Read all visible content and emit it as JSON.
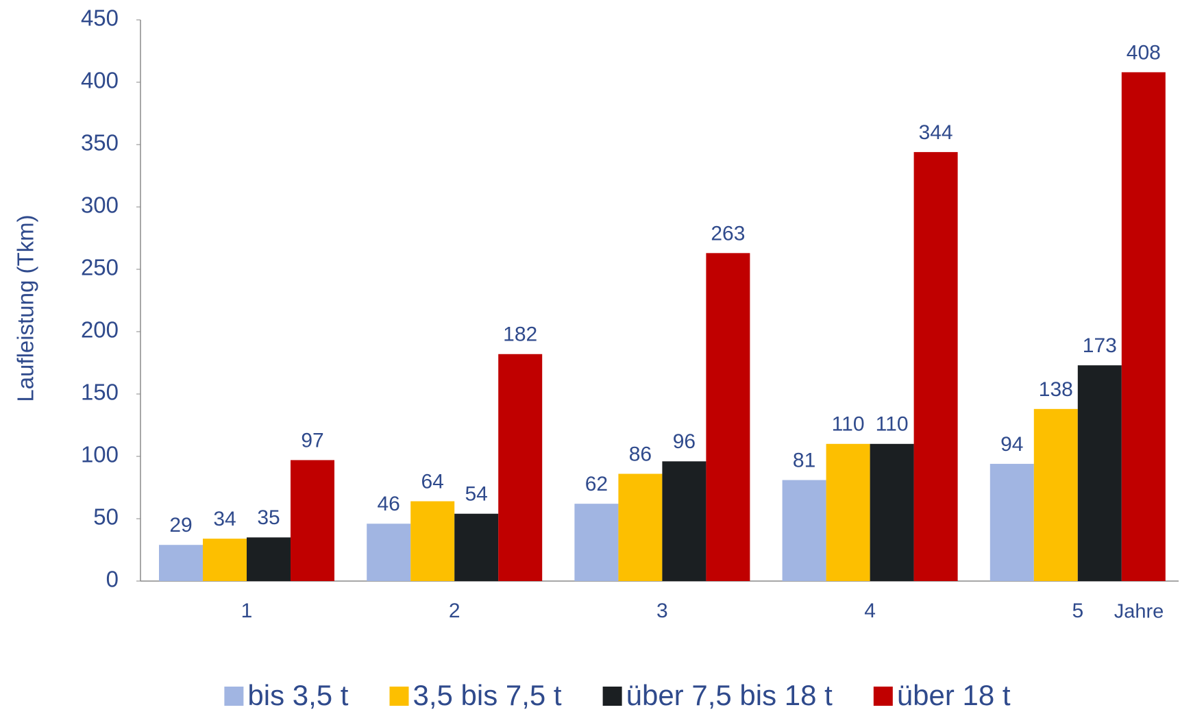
{
  "chart_data": {
    "type": "bar",
    "y_label": "Laufleistung (Tkm)",
    "x_label": "Jahre",
    "categories": [
      "1",
      "2",
      "3",
      "4",
      "5"
    ],
    "series": [
      {
        "name": "bis 3,5 t",
        "color": "#a1b5e2",
        "values": [
          29,
          46,
          62,
          81,
          94
        ]
      },
      {
        "name": "3,5 bis 7,5 t",
        "color": "#fdbf00",
        "values": [
          34,
          64,
          86,
          110,
          138
        ]
      },
      {
        "name": "über 7,5 bis 18 t",
        "color": "#1b1f22",
        "values": [
          35,
          54,
          96,
          110,
          173
        ]
      },
      {
        "name": "über 18 t",
        "color": "#c00000",
        "values": [
          97,
          182,
          263,
          344,
          408
        ]
      }
    ],
    "ylim": [
      0,
      450
    ],
    "yticks": [
      0,
      50,
      100,
      150,
      200,
      250,
      300,
      350,
      400,
      450
    ],
    "grid": false,
    "legend": "bottom"
  }
}
